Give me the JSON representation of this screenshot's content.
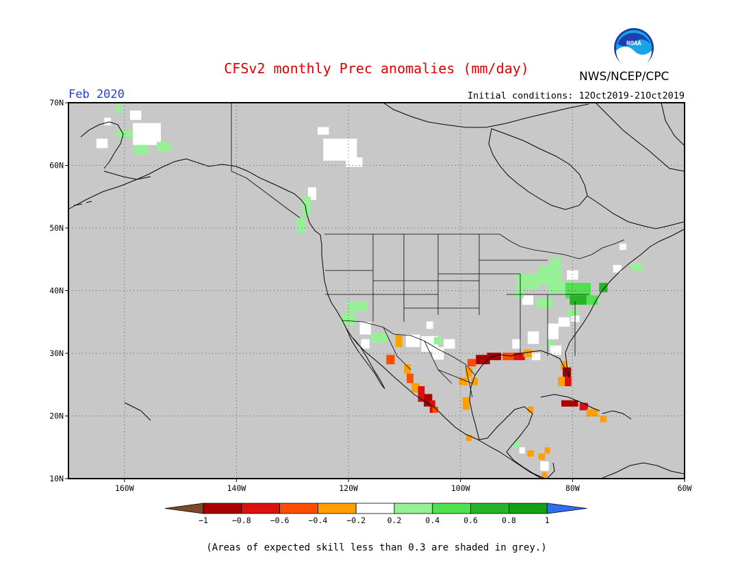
{
  "header": {
    "title": "CFSv2 monthly Prec anomalies (mm/day)",
    "org": "NWS/NCEP/CPC",
    "month": "Feb 2020",
    "initial_conditions": "Initial conditions: 12Oct2019-21Oct2019",
    "logo_text": "NOAA"
  },
  "map": {
    "lon_range": [
      -170,
      -60
    ],
    "lat_range": [
      10,
      70
    ],
    "background_grey": "#c8c8c8",
    "lon_labels": [
      {
        "lon": -160,
        "text": "160W"
      },
      {
        "lon": -140,
        "text": "140W"
      },
      {
        "lon": -120,
        "text": "120W"
      },
      {
        "lon": -100,
        "text": "100W"
      },
      {
        "lon": -80,
        "text": "80W"
      },
      {
        "lon": -60,
        "text": "60W"
      }
    ],
    "lat_labels": [
      {
        "lat": 70,
        "text": "70N"
      },
      {
        "lat": 60,
        "text": "60N"
      },
      {
        "lat": 50,
        "text": "50N"
      },
      {
        "lat": 40,
        "text": "40N"
      },
      {
        "lat": 30,
        "text": "30N"
      },
      {
        "lat": 20,
        "text": "20N"
      },
      {
        "lat": 10,
        "text": "10N"
      }
    ],
    "anomaly_cells": [
      {
        "lon": -163,
        "lat": 67,
        "w": 1.2,
        "h": 1.2,
        "value": 0.0
      },
      {
        "lon": -161,
        "lat": 69,
        "w": 1.2,
        "h": 1.2,
        "value": 0.3
      },
      {
        "lon": -158,
        "lat": 68,
        "w": 2.0,
        "h": 1.5,
        "value": 0.0
      },
      {
        "lon": -156,
        "lat": 65,
        "w": 5,
        "h": 3.5,
        "value": 0.0
      },
      {
        "lon": -160,
        "lat": 65,
        "w": 3,
        "h": 1.2,
        "value": 0.3
      },
      {
        "lon": -157,
        "lat": 62.5,
        "w": 2.5,
        "h": 1.5,
        "value": 0.3
      },
      {
        "lon": -153,
        "lat": 63,
        "w": 2.5,
        "h": 1.5,
        "value": 0.3
      },
      {
        "lon": -164,
        "lat": 63.5,
        "w": 2,
        "h": 1.5,
        "value": 0.0
      },
      {
        "lon": -121.5,
        "lat": 62.5,
        "w": 6,
        "h": 3.5,
        "value": 0.0
      },
      {
        "lon": -119,
        "lat": 60.5,
        "w": 3,
        "h": 1.5,
        "value": 0.0
      },
      {
        "lon": -124.5,
        "lat": 65.5,
        "w": 2,
        "h": 1.2,
        "value": 0.0
      },
      {
        "lon": -126.5,
        "lat": 55.5,
        "w": 1.5,
        "h": 2,
        "value": 0.0
      },
      {
        "lon": -127.5,
        "lat": 53.5,
        "w": 1.5,
        "h": 3,
        "value": 0.3
      },
      {
        "lon": -128.5,
        "lat": 50.5,
        "w": 1.5,
        "h": 2.5,
        "value": 0.3
      },
      {
        "lon": -118.5,
        "lat": 37.5,
        "w": 3.5,
        "h": 1.5,
        "value": 0.3
      },
      {
        "lon": -120,
        "lat": 35.5,
        "w": 2.5,
        "h": 2,
        "value": 0.3
      },
      {
        "lon": -117,
        "lat": 34,
        "w": 2,
        "h": 2,
        "value": 0.0
      },
      {
        "lon": -114.5,
        "lat": 32.5,
        "w": 3,
        "h": 1.5,
        "value": 0.3
      },
      {
        "lon": -117,
        "lat": 31.5,
        "w": 1.5,
        "h": 1.5,
        "value": 0.0
      },
      {
        "lon": -111,
        "lat": 32,
        "w": 1.2,
        "h": 2,
        "value": -0.3
      },
      {
        "lon": -108.5,
        "lat": 32,
        "w": 2.5,
        "h": 2,
        "value": 0.0
      },
      {
        "lon": -105.5,
        "lat": 31.5,
        "w": 3,
        "h": 2.5,
        "value": 0.0
      },
      {
        "lon": -105.5,
        "lat": 34.5,
        "w": 1.2,
        "h": 1.2,
        "value": 0.0
      },
      {
        "lon": -104,
        "lat": 32,
        "w": 1.5,
        "h": 1.2,
        "value": 0.3
      },
      {
        "lon": -102,
        "lat": 31.5,
        "w": 2,
        "h": 1.5,
        "value": 0.0
      },
      {
        "lon": -104,
        "lat": 30,
        "w": 2,
        "h": 2,
        "value": 0.0
      },
      {
        "lon": -112.5,
        "lat": 29,
        "w": 1.5,
        "h": 1.5,
        "value": -0.5
      },
      {
        "lon": -109.5,
        "lat": 27.5,
        "w": 1.2,
        "h": 1.5,
        "value": -0.3
      },
      {
        "lon": -109,
        "lat": 26,
        "w": 1.2,
        "h": 1.5,
        "value": -0.5
      },
      {
        "lon": -108,
        "lat": 24.5,
        "w": 1.5,
        "h": 1.5,
        "value": -0.3
      },
      {
        "lon": -107,
        "lat": 23.5,
        "w": 1.2,
        "h": 2.5,
        "value": -0.7
      },
      {
        "lon": -105.8,
        "lat": 22.5,
        "w": 1.5,
        "h": 2,
        "value": -0.9
      },
      {
        "lon": -105,
        "lat": 21.5,
        "w": 1,
        "h": 2,
        "value": -0.7
      },
      {
        "lon": -104.5,
        "lat": 21,
        "w": 1,
        "h": 1,
        "value": -0.5
      },
      {
        "lon": -98,
        "lat": 28.5,
        "w": 1.5,
        "h": 1.2,
        "value": -0.5
      },
      {
        "lon": -96,
        "lat": 29,
        "w": 2.5,
        "h": 1.5,
        "value": -0.9
      },
      {
        "lon": -94,
        "lat": 29.5,
        "w": 2.5,
        "h": 1.2,
        "value": -0.9
      },
      {
        "lon": -98.5,
        "lat": 27,
        "w": 1.2,
        "h": 1.5,
        "value": -0.3
      },
      {
        "lon": -97.5,
        "lat": 25.5,
        "w": 1.2,
        "h": 1.2,
        "value": -0.3
      },
      {
        "lon": -99.5,
        "lat": 25.5,
        "w": 1.5,
        "h": 1.2,
        "value": -0.3
      },
      {
        "lon": -99,
        "lat": 22,
        "w": 1.2,
        "h": 2,
        "value": -0.3
      },
      {
        "lon": -91.5,
        "lat": 29.5,
        "w": 2,
        "h": 1.2,
        "value": -0.5
      },
      {
        "lon": -89.5,
        "lat": 29.5,
        "w": 2,
        "h": 1.2,
        "value": -0.7
      },
      {
        "lon": -88,
        "lat": 30,
        "w": 1.5,
        "h": 1.2,
        "value": -0.3
      },
      {
        "lon": -86.5,
        "lat": 29.5,
        "w": 1.5,
        "h": 1.2,
        "value": 0.0
      },
      {
        "lon": -81.5,
        "lat": 28,
        "w": 1.2,
        "h": 1.5,
        "value": -0.3
      },
      {
        "lon": -81,
        "lat": 27,
        "w": 1.5,
        "h": 1.5,
        "value": -0.9
      },
      {
        "lon": -80.8,
        "lat": 25.5,
        "w": 1.2,
        "h": 1.5,
        "value": -0.7
      },
      {
        "lon": -82,
        "lat": 25.5,
        "w": 1.2,
        "h": 1.5,
        "value": -0.3
      },
      {
        "lon": -80.5,
        "lat": 22,
        "w": 3,
        "h": 1,
        "value": -0.9
      },
      {
        "lon": -78,
        "lat": 21.5,
        "w": 1.5,
        "h": 1.2,
        "value": -0.7
      },
      {
        "lon": -76.5,
        "lat": 20.5,
        "w": 2,
        "h": 1.2,
        "value": -0.3
      },
      {
        "lon": -74.5,
        "lat": 19.5,
        "w": 1.2,
        "h": 1,
        "value": -0.3
      },
      {
        "lon": -87.5,
        "lat": 21,
        "w": 1,
        "h": 1,
        "value": -0.3
      },
      {
        "lon": -98.5,
        "lat": 16.5,
        "w": 1,
        "h": 1,
        "value": -0.3
      },
      {
        "lon": -89,
        "lat": 14.5,
        "w": 1,
        "h": 1,
        "value": 0.0
      },
      {
        "lon": -87.5,
        "lat": 14,
        "w": 1.2,
        "h": 1,
        "value": -0.3
      },
      {
        "lon": -85.5,
        "lat": 13.5,
        "w": 1.2,
        "h": 1,
        "value": -0.3
      },
      {
        "lon": -84.5,
        "lat": 14.5,
        "w": 1,
        "h": 1,
        "value": -0.3
      },
      {
        "lon": -85,
        "lat": 12,
        "w": 1.5,
        "h": 1.5,
        "value": 0.0
      },
      {
        "lon": -85,
        "lat": 10.5,
        "w": 1,
        "h": 1,
        "value": -0.3
      },
      {
        "lon": -90,
        "lat": 15.5,
        "w": 1,
        "h": 1,
        "value": 0.3
      },
      {
        "lon": -88,
        "lat": 41.5,
        "w": 4,
        "h": 2.5,
        "value": 0.3
      },
      {
        "lon": -84,
        "lat": 42.5,
        "w": 4,
        "h": 3,
        "value": 0.3
      },
      {
        "lon": -82,
        "lat": 40.5,
        "w": 5,
        "h": 2,
        "value": 0.3
      },
      {
        "lon": -79,
        "lat": 40,
        "w": 4.5,
        "h": 2.5,
        "value": 0.5
      },
      {
        "lon": -79,
        "lat": 38.5,
        "w": 3,
        "h": 1.5,
        "value": 0.7
      },
      {
        "lon": -76.5,
        "lat": 38.5,
        "w": 2,
        "h": 1.5,
        "value": 0.5
      },
      {
        "lon": -85,
        "lat": 38,
        "w": 3,
        "h": 1.5,
        "value": 0.3
      },
      {
        "lon": -88,
        "lat": 38.5,
        "w": 2,
        "h": 1.5,
        "value": 0.0
      },
      {
        "lon": -89.5,
        "lat": 39.5,
        "w": 1.5,
        "h": 1.5,
        "value": 0.3
      },
      {
        "lon": -83,
        "lat": 44.5,
        "w": 2,
        "h": 1.5,
        "value": 0.3
      },
      {
        "lon": -80,
        "lat": 42.5,
        "w": 2,
        "h": 1.5,
        "value": 0.0
      },
      {
        "lon": -74.5,
        "lat": 40.5,
        "w": 1.5,
        "h": 1.5,
        "value": 0.7
      },
      {
        "lon": -72,
        "lat": 43.5,
        "w": 1.5,
        "h": 1.2,
        "value": 0.0
      },
      {
        "lon": -68.5,
        "lat": 43.8,
        "w": 2,
        "h": 1.2,
        "value": 0.3
      },
      {
        "lon": -71,
        "lat": 47,
        "w": 1.2,
        "h": 1,
        "value": 0.0
      },
      {
        "lon": -80,
        "lat": 36.5,
        "w": 2,
        "h": 1.2,
        "value": 0.3
      },
      {
        "lon": -81.5,
        "lat": 35,
        "w": 2,
        "h": 1.5,
        "value": 0.0
      },
      {
        "lon": -83.5,
        "lat": 33.5,
        "w": 2,
        "h": 2.5,
        "value": 0.0
      },
      {
        "lon": -84,
        "lat": 31.5,
        "w": 1.2,
        "h": 1,
        "value": 0.3
      },
      {
        "lon": -87,
        "lat": 32.5,
        "w": 2,
        "h": 2,
        "value": 0.0
      },
      {
        "lon": -90,
        "lat": 31.5,
        "w": 1.5,
        "h": 1.5,
        "value": 0.0
      },
      {
        "lon": -83,
        "lat": 30.5,
        "w": 2,
        "h": 1.5,
        "value": 0.0
      },
      {
        "lon": -79.5,
        "lat": 35.5,
        "w": 1.5,
        "h": 1,
        "value": 0.0
      }
    ]
  },
  "colorbar": {
    "labels": [
      "−1",
      "−0.8",
      "−0.6",
      "−0.4",
      "−0.2",
      "0.2",
      "0.4",
      "0.6",
      "0.8",
      "1"
    ],
    "colors": {
      "below": "#7b4a2a",
      "bins": [
        "#a80000",
        "#dd1010",
        "#ff4d00",
        "#ffa000",
        "#ffffff",
        "#96f096",
        "#50e050",
        "#28b428",
        "#14a014"
      ],
      "above": "#2f6ef0"
    }
  },
  "footnote": "(Areas of expected skill less than 0.3 are shaded in grey.)"
}
